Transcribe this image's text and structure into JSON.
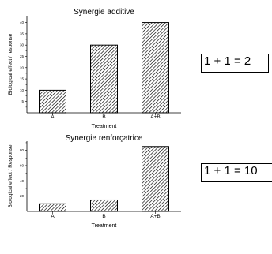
{
  "chart_data": [
    {
      "type": "bar",
      "title": "Synergie additive",
      "xlabel": "Treatment",
      "ylabel": "Biological effect / response",
      "categories": [
        "A",
        "B",
        "A+B"
      ],
      "values": [
        10,
        30,
        40
      ],
      "ylim": [
        0,
        43
      ],
      "yticks": [
        5,
        10,
        15,
        20,
        25,
        30,
        35,
        40
      ],
      "bar_fill": "diagonal-hatch",
      "grid": false
    },
    {
      "type": "bar",
      "title": "Synergie renforçatrice",
      "xlabel": "Treatment",
      "ylabel": "Biological effect / Response",
      "categories": [
        "A",
        "B",
        "A+B"
      ],
      "values": [
        10,
        15,
        85
      ],
      "ylim": [
        0,
        92
      ],
      "yticks": [
        20,
        40,
        60,
        80
      ],
      "bar_fill": "diagonal-hatch",
      "grid": false
    }
  ],
  "equations": [
    "1 + 1 = 2",
    "1 + 1 = 10"
  ],
  "colors": {
    "ink": "#000000",
    "background": "#ffffff"
  }
}
